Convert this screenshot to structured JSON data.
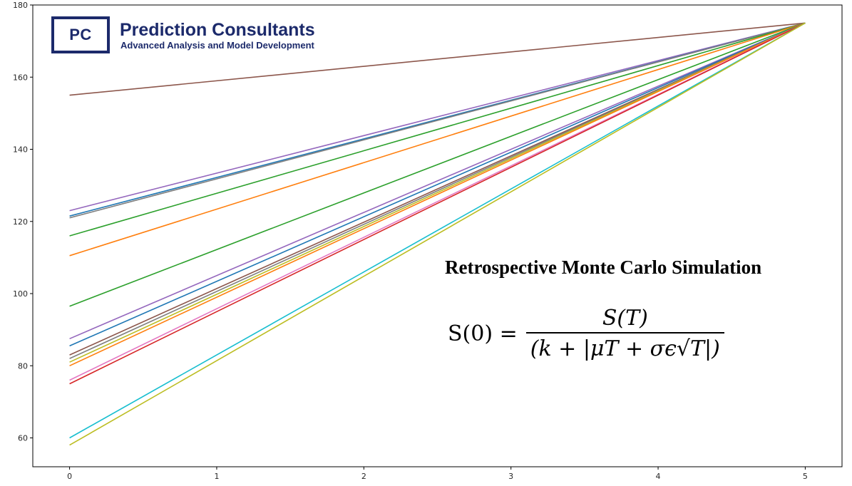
{
  "chart_data": {
    "type": "line",
    "title": "",
    "xlabel": "",
    "ylabel": "",
    "xlim": [
      -0.25,
      5.25
    ],
    "ylim": [
      52,
      180
    ],
    "x_ticks": [
      0,
      1,
      2,
      3,
      4,
      5
    ],
    "y_ticks": [
      60,
      80,
      100,
      120,
      140,
      160,
      180
    ],
    "grid": false,
    "x": [
      0,
      5
    ],
    "series": [
      {
        "name": "path-1",
        "color": "#8c564b",
        "values": [
          155.0,
          175
        ]
      },
      {
        "name": "path-2",
        "color": "#9467bd",
        "values": [
          123.0,
          175
        ]
      },
      {
        "name": "path-3",
        "color": "#1f77b4",
        "values": [
          121.5,
          175
        ]
      },
      {
        "name": "path-4",
        "color": "#7f7f7f",
        "values": [
          121.0,
          175
        ]
      },
      {
        "name": "path-5",
        "color": "#2ca02c",
        "values": [
          116.0,
          175
        ]
      },
      {
        "name": "path-6",
        "color": "#ff7f0e",
        "values": [
          110.5,
          175
        ]
      },
      {
        "name": "path-7",
        "color": "#2ca02c",
        "values": [
          96.5,
          175
        ]
      },
      {
        "name": "path-8",
        "color": "#9467bd",
        "values": [
          87.5,
          175
        ]
      },
      {
        "name": "path-9",
        "color": "#1f77b4",
        "values": [
          85.5,
          175
        ]
      },
      {
        "name": "path-10",
        "color": "#8c564b",
        "values": [
          83.0,
          175
        ]
      },
      {
        "name": "path-11",
        "color": "#7f7f7f",
        "values": [
          82.0,
          175
        ]
      },
      {
        "name": "path-12",
        "color": "#bcbd22",
        "values": [
          81.0,
          175
        ]
      },
      {
        "name": "path-13",
        "color": "#ff7f0e",
        "values": [
          80.0,
          175
        ]
      },
      {
        "name": "path-14",
        "color": "#e377c2",
        "values": [
          76.0,
          175
        ]
      },
      {
        "name": "path-15",
        "color": "#d62728",
        "values": [
          75.0,
          175
        ]
      },
      {
        "name": "path-16",
        "color": "#17becf",
        "values": [
          60.0,
          175
        ]
      },
      {
        "name": "path-17",
        "color": "#bcbd22",
        "values": [
          58.0,
          175
        ]
      }
    ],
    "annotations": [
      "Retrospective Monte Carlo Simulation"
    ]
  },
  "logo": {
    "mark": "PC",
    "name": "Prediction Consultants",
    "tagline": "Advanced Analysis and Model Development"
  },
  "annotation": {
    "title": "Retrospective Monte Carlo Simulation",
    "formula": {
      "lhs": "S(0) =",
      "numerator": "S(T)",
      "denominator": "(k + |μT + σϵ√T|)"
    }
  }
}
